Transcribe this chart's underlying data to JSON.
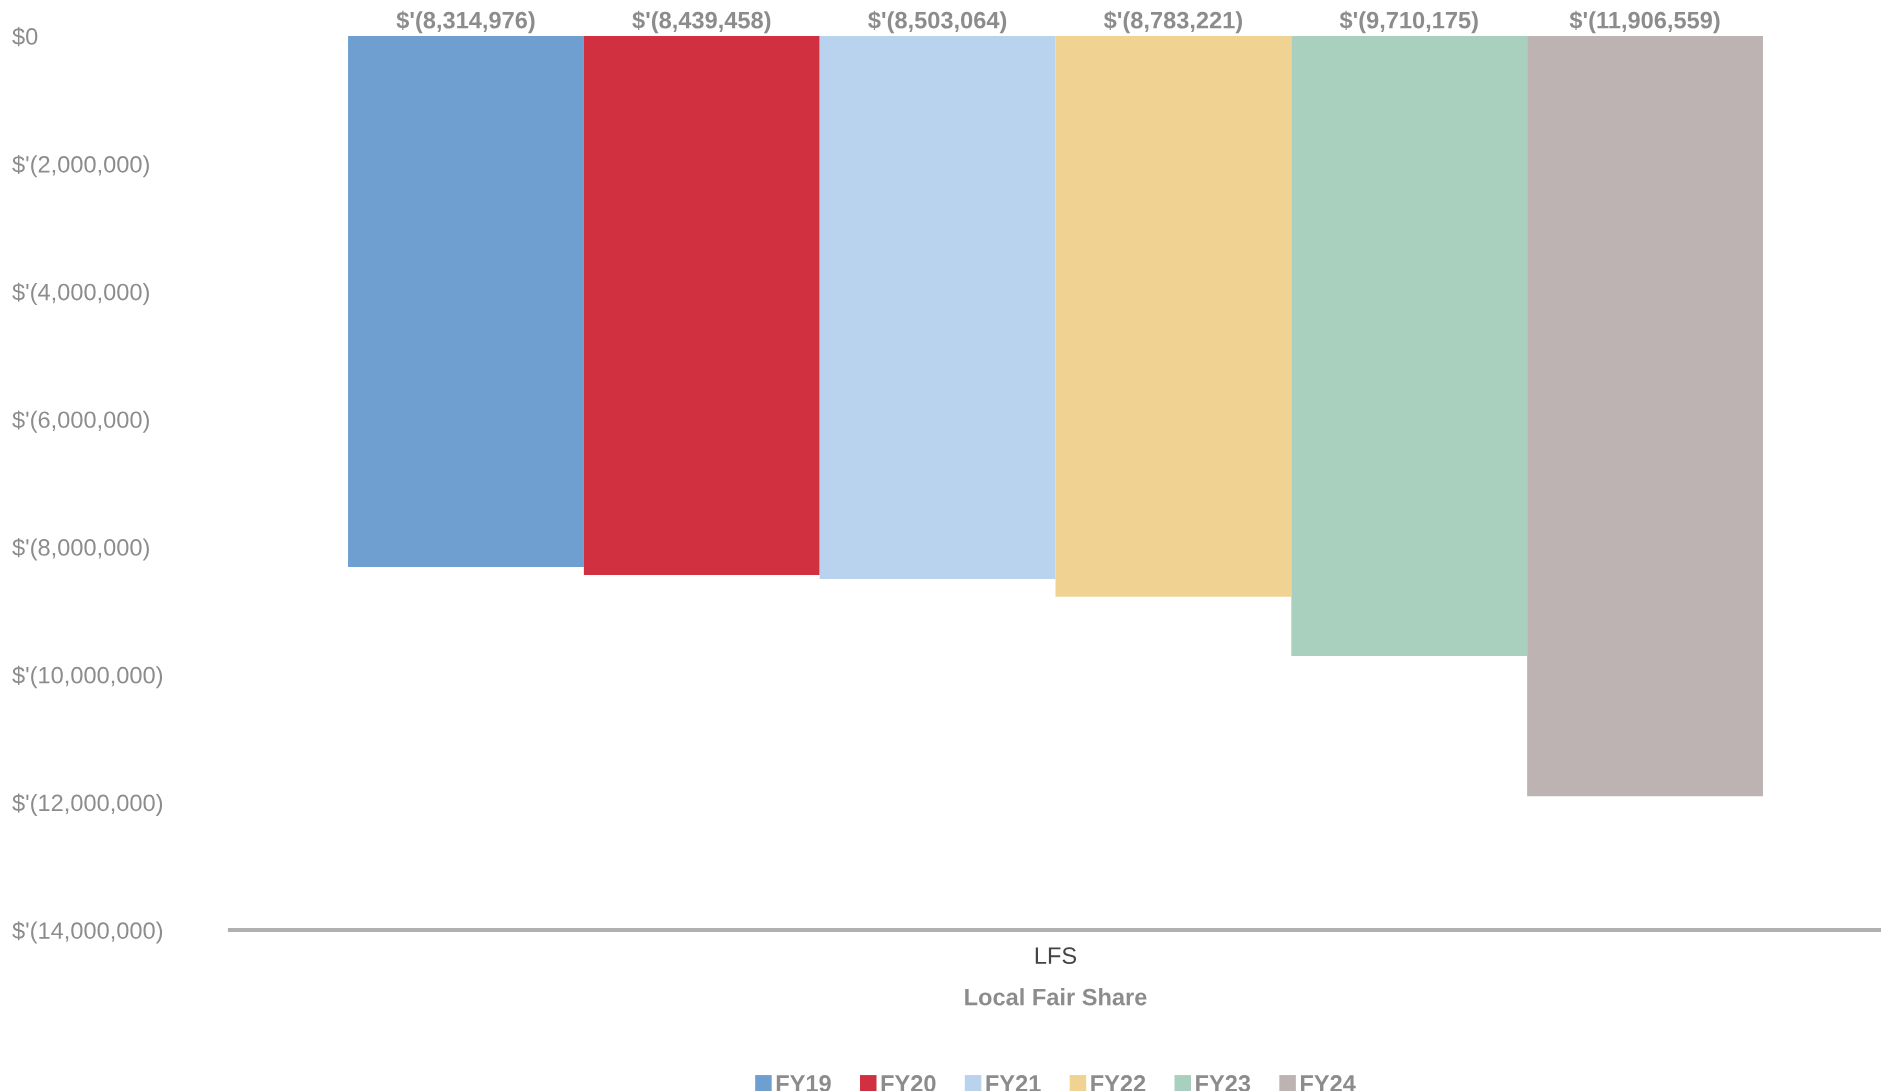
{
  "chart_data": {
    "type": "bar",
    "categories": [
      "LFS"
    ],
    "xlabel": "Local Fair Share",
    "series": [
      {
        "name": "FY19",
        "color": "#6f9fd0",
        "values": [
          -8314976
        ],
        "value_labels": [
          "$'(8,314,976)"
        ]
      },
      {
        "name": "FY20",
        "color": "#d0303f",
        "values": [
          -8439458
        ],
        "value_labels": [
          "$'(8,439,458)"
        ]
      },
      {
        "name": "FY21",
        "color": "#b9d3ee",
        "values": [
          -8503064
        ],
        "value_labels": [
          "$'(8,503,064)"
        ]
      },
      {
        "name": "FY22",
        "color": "#f0d293",
        "values": [
          -8783221
        ],
        "value_labels": [
          "$'(8,783,221)"
        ]
      },
      {
        "name": "FY23",
        "color": "#a9d0be",
        "values": [
          -9710175
        ],
        "value_labels": [
          "$'(9,710,175)"
        ]
      },
      {
        "name": "FY24",
        "color": "#bdb3b3",
        "values": [
          -11906559
        ],
        "value_labels": [
          "$'(11,906,559)"
        ]
      }
    ],
    "ylim": [
      -14000000,
      0
    ],
    "yticks": [
      {
        "value": 0,
        "label": "$0"
      },
      {
        "value": -2000000,
        "label": "$'(2,000,000)"
      },
      {
        "value": -4000000,
        "label": "$'(4,000,000)"
      },
      {
        "value": -6000000,
        "label": "$'(6,000,000)"
      },
      {
        "value": -8000000,
        "label": "$'(8,000,000)"
      },
      {
        "value": -10000000,
        "label": "$'(10,000,000)"
      },
      {
        "value": -12000000,
        "label": "$'(12,000,000)"
      },
      {
        "value": -14000000,
        "label": "$'(14,000,000)"
      }
    ],
    "legend": "bottom"
  }
}
